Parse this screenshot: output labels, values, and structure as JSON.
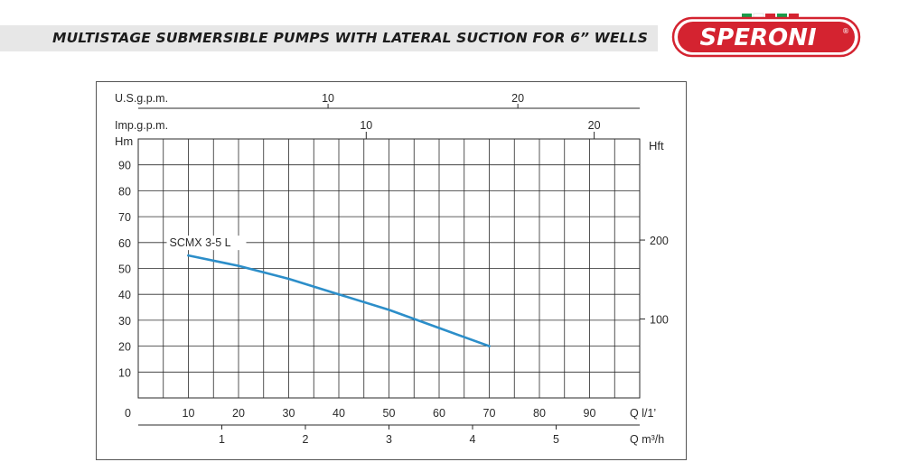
{
  "header": {
    "title": "MULTISTAGE SUBMERSIBLE PUMPS WITH LATERAL SUCTION FOR 6” WELLS",
    "accent_color": "#e7e7e7"
  },
  "brand": {
    "name": "SPERONI",
    "mark": "®",
    "color": "#d42330",
    "flag_colors": [
      "#1a9b4a",
      "#ffffff",
      "#d42330"
    ]
  },
  "chart_data": {
    "type": "line",
    "series": [
      {
        "name": "SCMX 3-5 L",
        "color": "#2c8ec9",
        "x": [
          10,
          20,
          30,
          40,
          50,
          60,
          70
        ],
        "y": [
          55,
          51,
          46,
          40,
          34,
          27,
          20
        ]
      }
    ],
    "left_axis": {
      "label": "Hm",
      "range": [
        0,
        100
      ],
      "ticks": [
        10,
        20,
        30,
        40,
        50,
        60,
        70,
        80,
        90
      ]
    },
    "right_axis": {
      "label": "Hft",
      "ticks": [
        {
          "value": 100,
          "label": "100"
        },
        {
          "value": 200,
          "label": "200"
        }
      ]
    },
    "x_axis": {
      "label": "Q  l/1’",
      "range": [
        0,
        100
      ],
      "ticks": [
        10,
        20,
        30,
        40,
        50,
        60,
        70,
        80,
        90
      ],
      "origin_label": "0"
    },
    "m3h_axis": {
      "label": "Q  m³/h",
      "ticks": [
        1,
        2,
        3,
        4,
        5
      ]
    },
    "usgpm_axis": {
      "label": "U.S.g.p.m.",
      "ticks": [
        10,
        20
      ]
    },
    "impgpm_axis": {
      "label": "Imp.g.p.m.",
      "ticks": [
        10,
        20
      ]
    },
    "grid": true,
    "legend": "inline-label"
  }
}
